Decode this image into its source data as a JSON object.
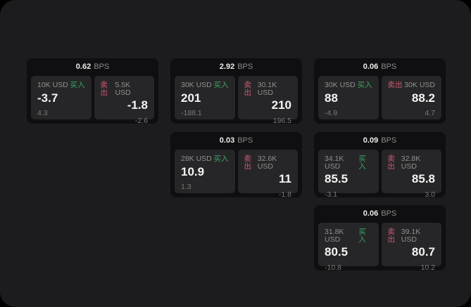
{
  "labels": {
    "bps": "BPS",
    "buy": "买入",
    "sell": "卖出"
  },
  "colors": {
    "outer_background": "#000000",
    "panel_background": "#1c1c1e",
    "card_background": "#0f0f11",
    "tile_background": "#262628",
    "buy_accent": "#3aa563",
    "sell_accent": "#cc5a72",
    "value_text": "#f4f4f4",
    "muted_text": "#90908f",
    "dim_text": "#7a7a78"
  },
  "cards": [
    {
      "bps": "0.62",
      "buy": {
        "amount": "10K USD",
        "value": "-3.7",
        "delta": "4.3"
      },
      "sell": {
        "amount": "5.5K USD",
        "value": "-1.8",
        "delta": "-2.6"
      }
    },
    {
      "bps": "2.92",
      "buy": {
        "amount": "30K USD",
        "value": "201",
        "delta": "-188.1"
      },
      "sell": {
        "amount": "30.1K USD",
        "value": "210",
        "delta": "196.5"
      }
    },
    {
      "bps": "0.06",
      "buy": {
        "amount": "30K USD",
        "value": "88",
        "delta": "-4.9"
      },
      "sell": {
        "amount": "30K USD",
        "value": "88.2",
        "delta": "4.7"
      }
    },
    {
      "bps": "0.03",
      "buy": {
        "amount": "28K USD",
        "value": "10.9",
        "delta": "1.3"
      },
      "sell": {
        "amount": "32.6K USD",
        "value": "11",
        "delta": "-1.8"
      }
    },
    {
      "bps": "0.09",
      "buy": {
        "amount": "34.1K USD",
        "value": "85.5",
        "delta": "-3.1"
      },
      "sell": {
        "amount": "32.8K USD",
        "value": "85.8",
        "delta": "3.0"
      }
    },
    {
      "bps": "0.06",
      "buy": {
        "amount": "31.8K USD",
        "value": "80.5",
        "delta": "-10.8"
      },
      "sell": {
        "amount": "39.1K USD",
        "value": "80.7",
        "delta": "10.2"
      }
    }
  ]
}
